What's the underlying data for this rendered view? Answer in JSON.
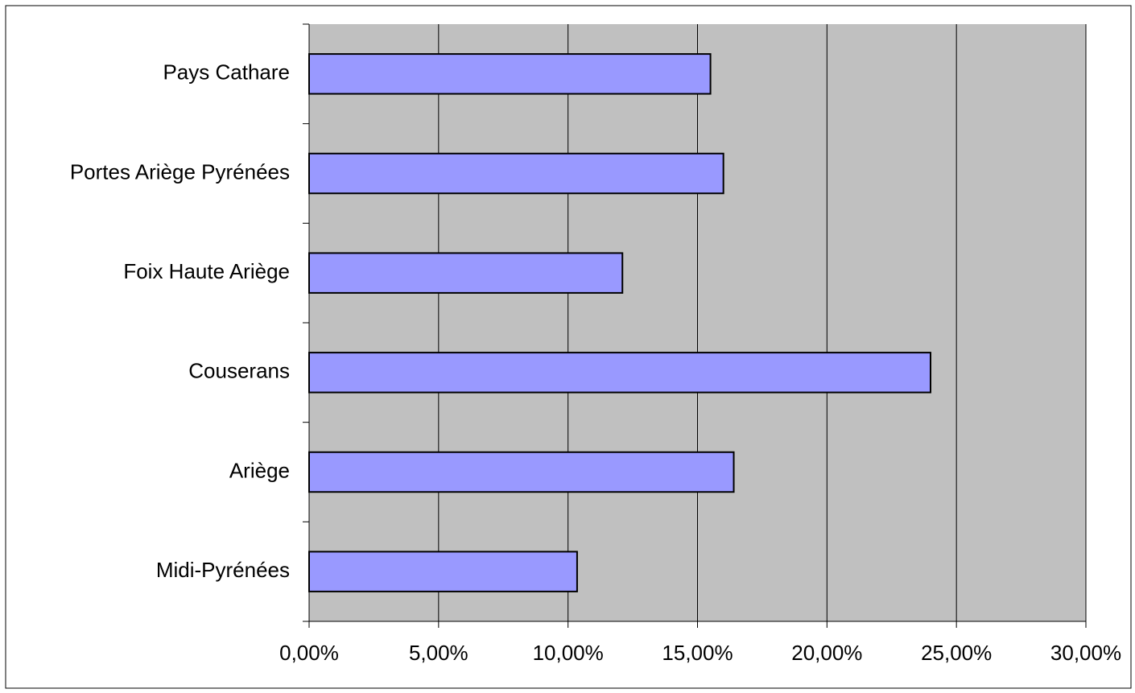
{
  "chart_data": {
    "type": "bar",
    "orientation": "horizontal",
    "title": "",
    "xlabel": "",
    "ylabel": "",
    "categories": [
      "Pays Cathare",
      "Portes Ariège Pyrénées",
      "Foix Haute Ariège",
      "Couserans",
      "Ariège",
      "Midi-Pyrénées"
    ],
    "values": [
      15.5,
      16.0,
      12.1,
      24.0,
      16.4,
      10.35
    ],
    "value_unit": "%",
    "xlim": [
      0,
      30
    ],
    "x_ticks": [
      0,
      5,
      10,
      15,
      20,
      25,
      30
    ],
    "x_tick_labels": [
      "0,00%",
      "5,00%",
      "10,00%",
      "15,00%",
      "20,00%",
      "25,00%",
      "30,00%"
    ],
    "grid": "vertical",
    "legend": "none",
    "colors": {
      "bar_fill": "#9999ff",
      "bar_stroke": "#000000",
      "plot_background": "#c0c0c0",
      "gridline": "#000000",
      "page_background": "#ffffff"
    }
  }
}
